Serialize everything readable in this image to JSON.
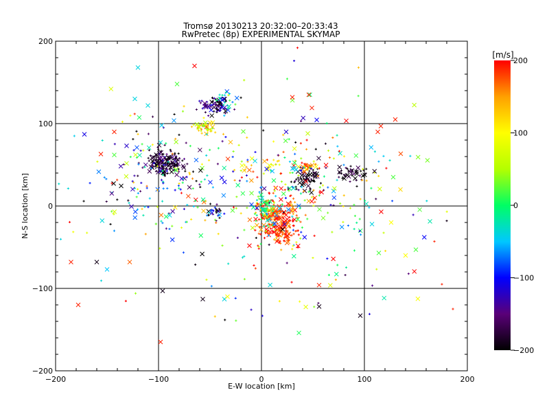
{
  "chart_data": {
    "type": "scatter",
    "title": "Tromsø 20130213 20:32:00–20:33:43",
    "subtitle": "RwPretec (8p) EXPERIMENTAL SKYMAP",
    "xlabel": "E-W location [km]",
    "ylabel": "N-S location [km]",
    "xlim": [
      -200,
      200
    ],
    "ylim": [
      -200,
      200
    ],
    "x_ticks": [
      -200,
      -100,
      0,
      100,
      200
    ],
    "y_ticks": [
      -200,
      -100,
      0,
      100,
      200
    ],
    "grid_lines": [
      -100,
      0,
      100
    ],
    "grid": true,
    "colorbar": {
      "label": "[m/s]",
      "min": -200,
      "max": 200,
      "ticks": [
        200,
        100,
        0,
        -100,
        -200
      ],
      "colors": [
        "#000000",
        "#5a0078",
        "#0000ff",
        "#00c8ff",
        "#00ff64",
        "#b4ff00",
        "#ffff00",
        "#ffa000",
        "#ff0000"
      ]
    },
    "clusters": [
      {
        "x": -92,
        "y": 52,
        "sx": 9,
        "sy": 8,
        "v": -180,
        "vs": 30,
        "n": 170
      },
      {
        "x": -45,
        "y": 122,
        "sx": 7,
        "sy": 5,
        "v": -170,
        "vs": 40,
        "n": 70
      },
      {
        "x": -33,
        "y": 128,
        "sx": 6,
        "sy": 5,
        "v": -40,
        "vs": 40,
        "n": 20
      },
      {
        "x": -55,
        "y": 96,
        "sx": 5,
        "sy": 4,
        "v": 100,
        "vs": 40,
        "n": 40
      },
      {
        "x": 15,
        "y": -12,
        "sx": 9,
        "sy": 12,
        "v": 180,
        "vs": 30,
        "n": 180
      },
      {
        "x": 3,
        "y": -5,
        "sx": 5,
        "sy": 10,
        "v": 0,
        "vs": 40,
        "n": 60
      },
      {
        "x": 20,
        "y": -38,
        "sx": 7,
        "sy": 7,
        "v": 185,
        "vs": 20,
        "n": 60
      },
      {
        "x": 45,
        "y": 32,
        "sx": 8,
        "sy": 7,
        "v": -190,
        "vs": 20,
        "n": 60
      },
      {
        "x": 88,
        "y": 40,
        "sx": 9,
        "sy": 5,
        "v": -190,
        "vs": 20,
        "n": 45
      },
      {
        "x": 42,
        "y": 48,
        "sx": 5,
        "sy": 4,
        "v": 170,
        "vs": 30,
        "n": 25
      },
      {
        "x": -45,
        "y": -8,
        "sx": 4,
        "sy": 5,
        "v": -160,
        "vs": 40,
        "n": 25
      },
      {
        "x": 10,
        "y": 48,
        "sx": 5,
        "sy": 5,
        "v": 110,
        "vs": 30,
        "n": 15
      },
      {
        "x": -15,
        "y": 48,
        "sx": 4,
        "sy": 4,
        "v": 120,
        "vs": 40,
        "n": 10
      },
      {
        "x": -100,
        "y": 30,
        "sx": 35,
        "sy": 40,
        "v": -60,
        "vs": 120,
        "n": 150
      },
      {
        "x": 40,
        "y": 20,
        "sx": 45,
        "sy": 40,
        "v": 60,
        "vs": 120,
        "n": 170
      },
      {
        "x": 0,
        "y": 0,
        "sx": 90,
        "sy": 75,
        "v": 0,
        "vs": 130,
        "n": 200
      }
    ],
    "points": [
      {
        "x": -120,
        "y": 168,
        "v": -40,
        "m": "x"
      },
      {
        "x": -123,
        "y": 130,
        "v": -40,
        "m": "x"
      },
      {
        "x": -82,
        "y": 148,
        "v": 20,
        "m": "x"
      },
      {
        "x": -65,
        "y": 170,
        "v": 200,
        "m": "x"
      },
      {
        "x": 35,
        "y": 192,
        "v": 200,
        "m": "+"
      },
      {
        "x": 30,
        "y": 132,
        "v": 190,
        "m": "x"
      },
      {
        "x": 46,
        "y": 135,
        "v": 190,
        "m": "x"
      },
      {
        "x": 49,
        "y": 119,
        "v": 190,
        "m": "x"
      },
      {
        "x": 113,
        "y": 90,
        "v": 190,
        "m": "x"
      },
      {
        "x": 130,
        "y": 105,
        "v": 190,
        "m": "x"
      },
      {
        "x": 116,
        "y": 97,
        "v": 190,
        "m": "x"
      },
      {
        "x": 24,
        "y": 90,
        "v": -120,
        "m": "x"
      },
      {
        "x": 45,
        "y": 88,
        "v": 60,
        "m": "x"
      },
      {
        "x": -172,
        "y": 87,
        "v": -110,
        "m": "x"
      },
      {
        "x": -143,
        "y": 90,
        "v": 190,
        "m": "x"
      },
      {
        "x": -143,
        "y": 62,
        "v": 20,
        "m": "x"
      },
      {
        "x": -156,
        "y": 63,
        "v": 190,
        "m": "x"
      },
      {
        "x": -131,
        "y": 73,
        "v": -120,
        "m": "x"
      },
      {
        "x": -121,
        "y": 71,
        "v": -80,
        "m": "x"
      },
      {
        "x": -185,
        "y": -68,
        "v": 190,
        "m": "x"
      },
      {
        "x": -178,
        "y": -120,
        "v": 190,
        "m": "x"
      },
      {
        "x": -160,
        "y": -68,
        "v": -190,
        "m": "x"
      },
      {
        "x": -150,
        "y": -77,
        "v": -50,
        "m": "x"
      },
      {
        "x": -128,
        "y": -68,
        "v": 170,
        "m": "x"
      },
      {
        "x": -96,
        "y": -103,
        "v": -190,
        "m": "x"
      },
      {
        "x": -98,
        "y": -165,
        "v": 190,
        "m": "x"
      },
      {
        "x": -57,
        "y": -113,
        "v": -190,
        "m": "x"
      },
      {
        "x": -36,
        "y": -113,
        "v": -40,
        "m": "x"
      },
      {
        "x": -33,
        "y": -110,
        "v": 100,
        "m": "x"
      },
      {
        "x": 56,
        "y": -96,
        "v": 190,
        "m": "x"
      },
      {
        "x": 56,
        "y": -122,
        "v": -190,
        "m": "x"
      },
      {
        "x": 96,
        "y": -133,
        "v": -190,
        "m": "x"
      },
      {
        "x": 140,
        "y": -60,
        "v": 100,
        "m": "x"
      },
      {
        "x": 150,
        "y": -53,
        "v": 20,
        "m": "x"
      },
      {
        "x": 135,
        "y": 20,
        "v": 120,
        "m": "x"
      },
      {
        "x": 128,
        "y": 35,
        "v": 20,
        "m": "x"
      },
      {
        "x": 126,
        "y": -20,
        "v": 100,
        "m": "x"
      },
      {
        "x": 114,
        "y": -57,
        "v": 20,
        "m": "x"
      },
      {
        "x": 186,
        "y": -125,
        "v": 190,
        "m": "+"
      },
      {
        "x": 168,
        "y": -43,
        "v": 190,
        "m": "+"
      },
      {
        "x": 180,
        "y": -18,
        "v": -190,
        "m": "+"
      }
    ]
  }
}
